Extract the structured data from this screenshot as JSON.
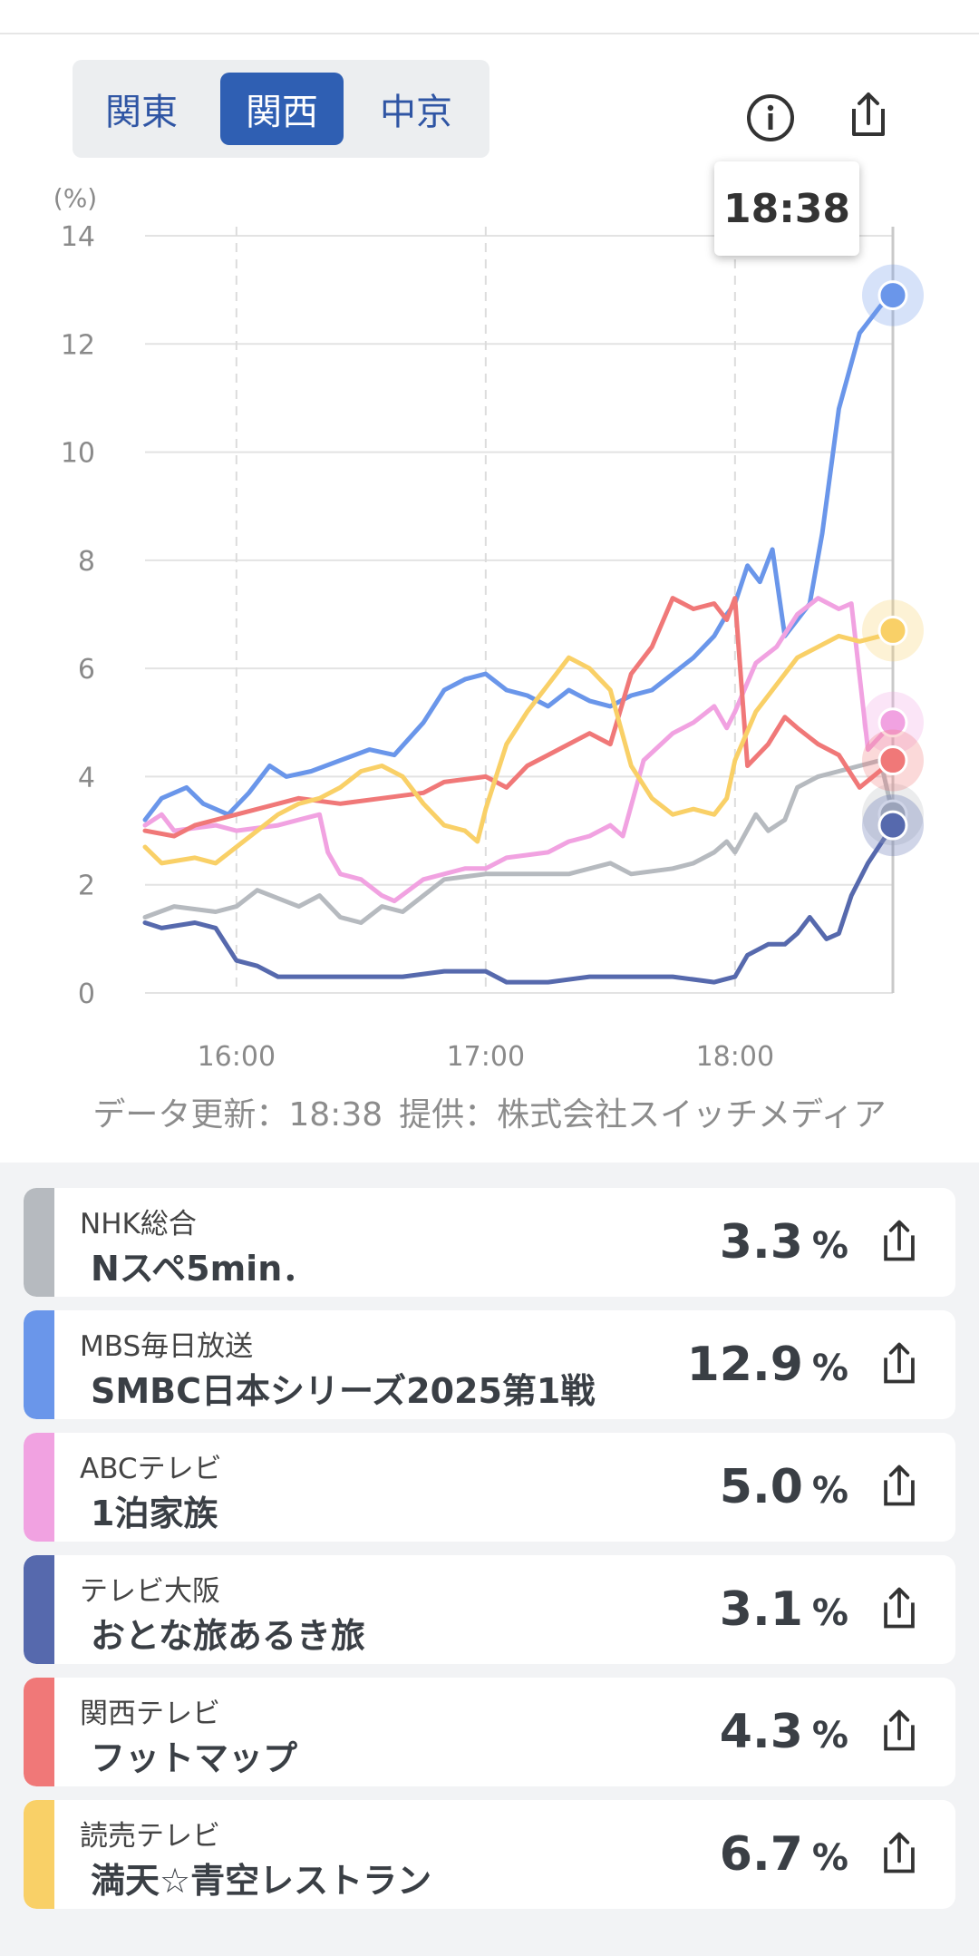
{
  "tabs": [
    {
      "label": "関東",
      "active": false
    },
    {
      "label": "関西",
      "active": true
    },
    {
      "label": "中京",
      "active": false
    }
  ],
  "icons": {
    "info": "info-icon",
    "share": "share-icon"
  },
  "tooltip": {
    "time": "18:38"
  },
  "footnote": {
    "updated": "データ更新：18:38",
    "provider": "提供：株式会社スイッチメディア"
  },
  "chart_data": {
    "type": "line",
    "yunit": "(%)",
    "ylim": [
      0,
      14
    ],
    "yticks": [
      0,
      2,
      4,
      6,
      8,
      10,
      12,
      14
    ],
    "xlim": [
      "15:38",
      "18:38"
    ],
    "xticks": [
      "16:00",
      "17:00",
      "18:00"
    ],
    "grid": true,
    "series": [
      {
        "key": "nhk",
        "color": "#b6babf",
        "points": [
          [
            "15:38",
            1.4
          ],
          [
            "15:45",
            1.6
          ],
          [
            "15:55",
            1.5
          ],
          [
            "16:00",
            1.6
          ],
          [
            "16:05",
            1.9
          ],
          [
            "16:15",
            1.6
          ],
          [
            "16:20",
            1.8
          ],
          [
            "16:25",
            1.4
          ],
          [
            "16:30",
            1.3
          ],
          [
            "16:35",
            1.6
          ],
          [
            "16:40",
            1.5
          ],
          [
            "16:45",
            1.8
          ],
          [
            "16:50",
            2.1
          ],
          [
            "17:00",
            2.2
          ],
          [
            "17:10",
            2.2
          ],
          [
            "17:20",
            2.2
          ],
          [
            "17:30",
            2.4
          ],
          [
            "17:35",
            2.2
          ],
          [
            "17:45",
            2.3
          ],
          [
            "17:50",
            2.4
          ],
          [
            "17:55",
            2.6
          ],
          [
            "17:58",
            2.8
          ],
          [
            "18:00",
            2.6
          ],
          [
            "18:05",
            3.3
          ],
          [
            "18:08",
            3.0
          ],
          [
            "18:12",
            3.2
          ],
          [
            "18:15",
            3.8
          ],
          [
            "18:20",
            4.0
          ],
          [
            "18:25",
            4.1
          ],
          [
            "18:30",
            4.2
          ],
          [
            "18:35",
            4.3
          ],
          [
            "18:38",
            3.3
          ]
        ]
      },
      {
        "key": "mbs",
        "color": "#6a96ea",
        "points": [
          [
            "15:38",
            3.2
          ],
          [
            "15:42",
            3.6
          ],
          [
            "15:48",
            3.8
          ],
          [
            "15:52",
            3.5
          ],
          [
            "15:58",
            3.3
          ],
          [
            "16:03",
            3.7
          ],
          [
            "16:08",
            4.2
          ],
          [
            "16:12",
            4.0
          ],
          [
            "16:18",
            4.1
          ],
          [
            "16:25",
            4.3
          ],
          [
            "16:32",
            4.5
          ],
          [
            "16:38",
            4.4
          ],
          [
            "16:45",
            5.0
          ],
          [
            "16:50",
            5.6
          ],
          [
            "16:55",
            5.8
          ],
          [
            "17:00",
            5.9
          ],
          [
            "17:05",
            5.6
          ],
          [
            "17:10",
            5.5
          ],
          [
            "17:15",
            5.3
          ],
          [
            "17:20",
            5.6
          ],
          [
            "17:25",
            5.4
          ],
          [
            "17:30",
            5.3
          ],
          [
            "17:35",
            5.5
          ],
          [
            "17:40",
            5.6
          ],
          [
            "17:45",
            5.9
          ],
          [
            "17:50",
            6.2
          ],
          [
            "17:55",
            6.6
          ],
          [
            "17:58",
            7.0
          ],
          [
            "18:00",
            7.2
          ],
          [
            "18:03",
            7.9
          ],
          [
            "18:06",
            7.6
          ],
          [
            "18:09",
            8.2
          ],
          [
            "18:12",
            6.6
          ],
          [
            "18:15",
            6.9
          ],
          [
            "18:18",
            7.2
          ],
          [
            "18:21",
            8.5
          ],
          [
            "18:25",
            10.8
          ],
          [
            "18:30",
            12.2
          ],
          [
            "18:35",
            12.7
          ],
          [
            "18:38",
            12.9
          ]
        ]
      },
      {
        "key": "abc",
        "color": "#f1a2e1",
        "points": [
          [
            "15:38",
            3.1
          ],
          [
            "15:42",
            3.3
          ],
          [
            "15:45",
            3.0
          ],
          [
            "15:55",
            3.1
          ],
          [
            "16:00",
            3.0
          ],
          [
            "16:10",
            3.1
          ],
          [
            "16:15",
            3.2
          ],
          [
            "16:20",
            3.3
          ],
          [
            "16:22",
            2.6
          ],
          [
            "16:25",
            2.2
          ],
          [
            "16:30",
            2.1
          ],
          [
            "16:35",
            1.8
          ],
          [
            "16:38",
            1.7
          ],
          [
            "16:45",
            2.1
          ],
          [
            "16:55",
            2.3
          ],
          [
            "17:00",
            2.3
          ],
          [
            "17:05",
            2.5
          ],
          [
            "17:15",
            2.6
          ],
          [
            "17:20",
            2.8
          ],
          [
            "17:25",
            2.9
          ],
          [
            "17:30",
            3.1
          ],
          [
            "17:33",
            2.9
          ],
          [
            "17:38",
            4.3
          ],
          [
            "17:45",
            4.8
          ],
          [
            "17:50",
            5.0
          ],
          [
            "17:55",
            5.3
          ],
          [
            "17:58",
            4.9
          ],
          [
            "18:00",
            5.2
          ],
          [
            "18:05",
            6.1
          ],
          [
            "18:10",
            6.4
          ],
          [
            "18:15",
            7.0
          ],
          [
            "18:20",
            7.3
          ],
          [
            "18:25",
            7.1
          ],
          [
            "18:28",
            7.2
          ],
          [
            "18:32",
            4.5
          ],
          [
            "18:38",
            5.0
          ]
        ]
      },
      {
        "key": "tvo",
        "color": "#5669ad",
        "points": [
          [
            "15:38",
            1.3
          ],
          [
            "15:42",
            1.2
          ],
          [
            "15:50",
            1.3
          ],
          [
            "15:55",
            1.2
          ],
          [
            "16:00",
            0.6
          ],
          [
            "16:05",
            0.5
          ],
          [
            "16:10",
            0.3
          ],
          [
            "16:20",
            0.3
          ],
          [
            "16:30",
            0.3
          ],
          [
            "16:40",
            0.3
          ],
          [
            "16:50",
            0.4
          ],
          [
            "17:00",
            0.4
          ],
          [
            "17:05",
            0.2
          ],
          [
            "17:15",
            0.2
          ],
          [
            "17:25",
            0.3
          ],
          [
            "17:35",
            0.3
          ],
          [
            "17:45",
            0.3
          ],
          [
            "17:55",
            0.2
          ],
          [
            "18:00",
            0.3
          ],
          [
            "18:03",
            0.7
          ],
          [
            "18:08",
            0.9
          ],
          [
            "18:12",
            0.9
          ],
          [
            "18:15",
            1.1
          ],
          [
            "18:18",
            1.4
          ],
          [
            "18:22",
            1.0
          ],
          [
            "18:25",
            1.1
          ],
          [
            "18:28",
            1.8
          ],
          [
            "18:32",
            2.4
          ],
          [
            "18:38",
            3.1
          ]
        ]
      },
      {
        "key": "ktv",
        "color": "#f07878",
        "points": [
          [
            "15:38",
            3.0
          ],
          [
            "15:45",
            2.9
          ],
          [
            "15:50",
            3.1
          ],
          [
            "16:00",
            3.3
          ],
          [
            "16:10",
            3.5
          ],
          [
            "16:15",
            3.6
          ],
          [
            "16:25",
            3.5
          ],
          [
            "16:35",
            3.6
          ],
          [
            "16:45",
            3.7
          ],
          [
            "16:50",
            3.9
          ],
          [
            "17:00",
            4.0
          ],
          [
            "17:05",
            3.8
          ],
          [
            "17:10",
            4.2
          ],
          [
            "17:15",
            4.4
          ],
          [
            "17:20",
            4.6
          ],
          [
            "17:25",
            4.8
          ],
          [
            "17:30",
            4.6
          ],
          [
            "17:35",
            5.9
          ],
          [
            "17:40",
            6.4
          ],
          [
            "17:45",
            7.3
          ],
          [
            "17:50",
            7.1
          ],
          [
            "17:55",
            7.2
          ],
          [
            "17:58",
            6.9
          ],
          [
            "18:00",
            7.3
          ],
          [
            "18:03",
            4.2
          ],
          [
            "18:08",
            4.6
          ],
          [
            "18:12",
            5.1
          ],
          [
            "18:15",
            4.9
          ],
          [
            "18:20",
            4.6
          ],
          [
            "18:25",
            4.4
          ],
          [
            "18:30",
            3.8
          ],
          [
            "18:38",
            4.3
          ]
        ]
      },
      {
        "key": "ytv",
        "color": "#f9d067",
        "points": [
          [
            "15:38",
            2.7
          ],
          [
            "15:42",
            2.4
          ],
          [
            "15:50",
            2.5
          ],
          [
            "15:55",
            2.4
          ],
          [
            "16:00",
            2.7
          ],
          [
            "16:05",
            3.0
          ],
          [
            "16:10",
            3.3
          ],
          [
            "16:15",
            3.5
          ],
          [
            "16:20",
            3.6
          ],
          [
            "16:25",
            3.8
          ],
          [
            "16:30",
            4.1
          ],
          [
            "16:35",
            4.2
          ],
          [
            "16:40",
            4.0
          ],
          [
            "16:45",
            3.5
          ],
          [
            "16:50",
            3.1
          ],
          [
            "16:55",
            3.0
          ],
          [
            "16:58",
            2.8
          ],
          [
            "17:00",
            3.4
          ],
          [
            "17:05",
            4.6
          ],
          [
            "17:10",
            5.2
          ],
          [
            "17:15",
            5.7
          ],
          [
            "17:20",
            6.2
          ],
          [
            "17:25",
            6.0
          ],
          [
            "17:30",
            5.6
          ],
          [
            "17:35",
            4.2
          ],
          [
            "17:40",
            3.6
          ],
          [
            "17:45",
            3.3
          ],
          [
            "17:50",
            3.4
          ],
          [
            "17:55",
            3.3
          ],
          [
            "17:58",
            3.6
          ],
          [
            "18:00",
            4.3
          ],
          [
            "18:05",
            5.2
          ],
          [
            "18:10",
            5.7
          ],
          [
            "18:15",
            6.2
          ],
          [
            "18:20",
            6.4
          ],
          [
            "18:25",
            6.6
          ],
          [
            "18:30",
            6.5
          ],
          [
            "18:35",
            6.6
          ],
          [
            "18:38",
            6.7
          ]
        ]
      }
    ]
  },
  "channels": [
    {
      "station": "NHK総合",
      "program": "Nスペ5min．",
      "value": "3.3",
      "unit": "%",
      "color": "#b6babf"
    },
    {
      "station": "MBS毎日放送",
      "program": "SMBC日本シリーズ2025第1戦",
      "value": "12.9",
      "unit": "%",
      "color": "#6a96ea"
    },
    {
      "station": "ABCテレビ",
      "program": "1泊家族",
      "value": "5.0",
      "unit": "%",
      "color": "#f1a2e1"
    },
    {
      "station": "テレビ大阪",
      "program": "おとな旅あるき旅",
      "value": "3.1",
      "unit": "%",
      "color": "#5669ad"
    },
    {
      "station": "関西テレビ",
      "program": "フットマップ",
      "value": "4.3",
      "unit": "%",
      "color": "#f07878"
    },
    {
      "station": "読売テレビ",
      "program": "満天☆青空レストラン",
      "value": "6.7",
      "unit": "%",
      "color": "#f9d067"
    }
  ]
}
